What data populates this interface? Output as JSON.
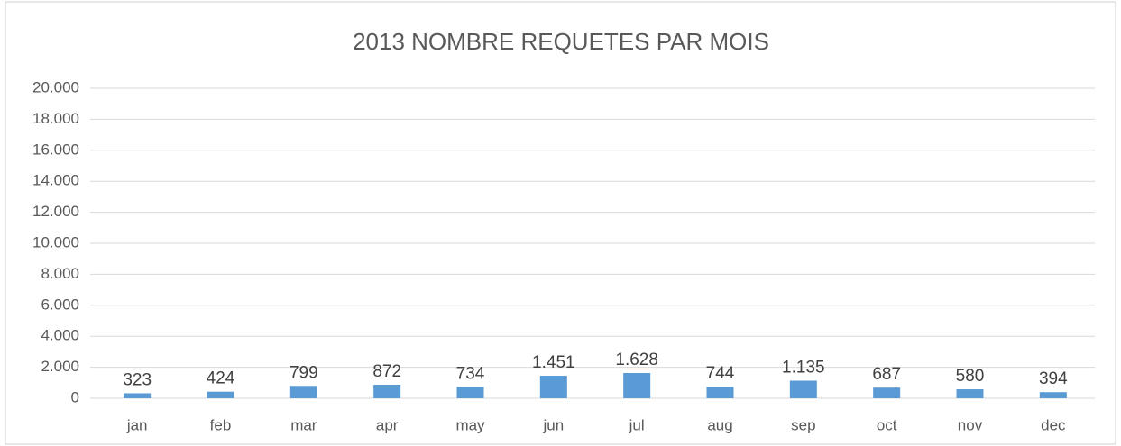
{
  "chart_data": {
    "type": "bar",
    "title": "2013 NOMBRE REQUETES PAR MOIS",
    "categories": [
      "jan",
      "feb",
      "mar",
      "apr",
      "may",
      "jun",
      "jul",
      "aug",
      "sep",
      "oct",
      "nov",
      "dec"
    ],
    "values": [
      323,
      424,
      799,
      872,
      734,
      1451,
      1628,
      744,
      1135,
      687,
      580,
      394
    ],
    "value_labels": [
      "323",
      "424",
      "799",
      "872",
      "734",
      "1.451",
      "1.628",
      "744",
      "1.135",
      "687",
      "580",
      "394"
    ],
    "color": "#5b9bd5",
    "ylim": [
      0,
      20000
    ],
    "yticks": [
      0,
      {
        "value": 2000,
        "label": "2.000"
      },
      {
        "value": 4000,
        "label": "4.000"
      },
      {
        "value": 6000,
        "label": "6.000"
      },
      {
        "value": 8000,
        "label": "8.000"
      },
      {
        "value": 10000,
        "label": "10.000"
      },
      {
        "value": 12000,
        "label": "12.000"
      },
      {
        "value": 14000,
        "label": "14.000"
      },
      {
        "value": 16000,
        "label": "16.000"
      },
      {
        "value": 18000,
        "label": "18.000"
      },
      {
        "value": 20000,
        "label": "20.000"
      }
    ],
    "grid": true
  }
}
